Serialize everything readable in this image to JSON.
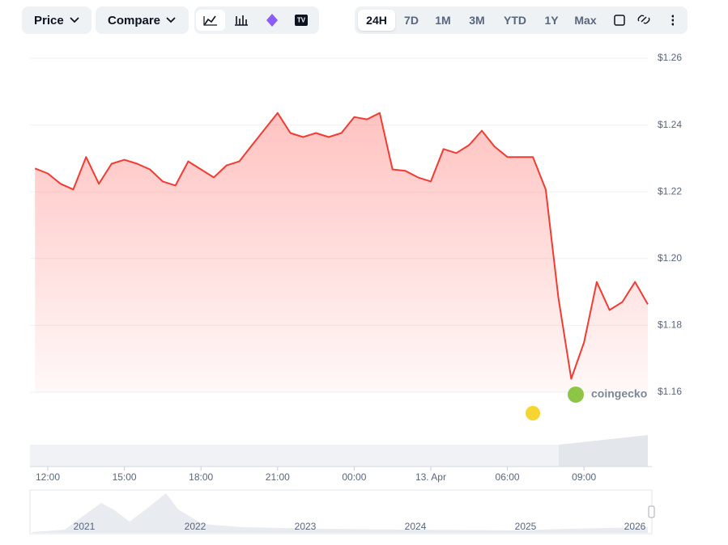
{
  "toolbar": {
    "dropdowns": [
      "Price",
      "Compare"
    ],
    "ranges": [
      "24H",
      "7D",
      "1M",
      "3M",
      "YTD",
      "1Y",
      "Max"
    ],
    "active_range": 0
  },
  "chart_data": {
    "type": "line",
    "color": "#f23b32",
    "fill": true,
    "grid": true,
    "categories": [
      null,
      "12:00",
      null,
      null,
      null,
      null,
      null,
      "15:00",
      null,
      null,
      null,
      null,
      null,
      "18:00",
      null,
      null,
      null,
      null,
      null,
      "21:00",
      null,
      null,
      null,
      null,
      null,
      "00:00",
      null,
      null,
      null,
      null,
      null,
      "13. Apr",
      null,
      null,
      null,
      null,
      null,
      "06:00",
      null,
      null,
      null,
      null,
      null,
      "09:00",
      null,
      null,
      null,
      null,
      null
    ],
    "values": [
      1.227,
      1.2255,
      1.2224,
      1.2207,
      1.2304,
      1.2224,
      1.2284,
      1.2296,
      1.2284,
      1.2267,
      1.2231,
      1.2219,
      1.2291,
      1.2267,
      1.2243,
      1.2279,
      1.2291,
      1.234,
      1.2388,
      1.2436,
      1.2376,
      1.2364,
      1.2376,
      1.2364,
      1.2376,
      1.2424,
      1.2417,
      1.2436,
      1.2267,
      1.2263,
      1.2243,
      1.2231,
      1.2328,
      1.2316,
      1.234,
      1.2383,
      1.2335,
      1.2304,
      1.2304,
      1.2304,
      1.2207,
      1.1882,
      1.164,
      1.1749,
      1.193,
      1.1846,
      1.187,
      1.193,
      1.1863
    ],
    "ylim": [
      1.16,
      1.26
    ],
    "yticks": [
      {
        "value": 1.16,
        "label": "$1.16"
      },
      {
        "value": 1.18,
        "label": "$1.18"
      },
      {
        "value": 1.2,
        "label": "$1.20"
      },
      {
        "value": 1.22,
        "label": "$1.22"
      },
      {
        "value": 1.24,
        "label": "$1.24"
      },
      {
        "value": 1.26,
        "label": "$1.26"
      }
    ]
  },
  "watermark": "coingecko",
  "navigator": {
    "years": [
      "2021",
      "2022",
      "2023",
      "2024",
      "2025",
      "2026"
    ]
  }
}
